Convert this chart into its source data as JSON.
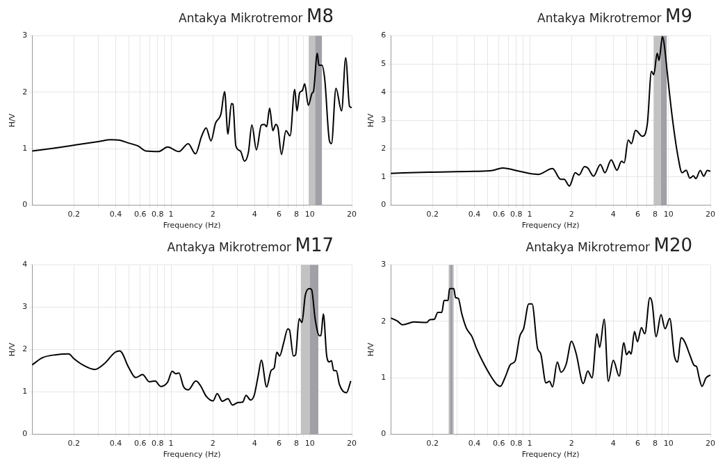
{
  "chart_data": [
    {
      "type": "line",
      "title": "Antakya Mikrotremor M8",
      "xlabel": "Frequency (Hz)",
      "ylabel": "H/V",
      "log": "x",
      "grid": true,
      "xlim": [
        0.1,
        20
      ],
      "ylim": [
        0,
        3
      ],
      "yticks": [
        0,
        1,
        2,
        3
      ],
      "xticks": [
        0.2,
        {
          "value": 0.3,
          "label": null
        },
        0.4,
        {
          "value": 0.5,
          "label": null
        },
        0.6,
        {
          "value": 0.7,
          "label": null
        },
        0.8,
        {
          "value": 0.9,
          "label": null
        },
        1,
        2,
        {
          "value": 3,
          "label": null
        },
        4,
        {
          "value": 5,
          "label": null
        },
        6,
        {
          "value": 7,
          "label": null
        },
        8,
        {
          "value": 9,
          "label": null
        },
        10,
        20
      ],
      "bands": [
        {
          "axis": "x",
          "from": 9.8,
          "to": 10.9,
          "color": "#c2c2c2"
        },
        {
          "axis": "x",
          "from": 10.9,
          "to": 12.2,
          "color": "#a0a0a6"
        }
      ],
      "series": [
        {
          "color": "#000000",
          "x": [
            0.1,
            0.143,
            0.209,
            0.305,
            0.368,
            0.428,
            0.497,
            0.578,
            0.66,
            0.813,
            0.945,
            1.14,
            1.33,
            1.5,
            1.66,
            1.79,
            1.94,
            2.09,
            2.29,
            2.43,
            2.57,
            2.72,
            2.79,
            2.93,
            3.16,
            3.38,
            3.61,
            3.82,
            4.12,
            4.47,
            4.7,
            4.88,
            5.13,
            5.41,
            5.68,
            5.89,
            6.24,
            6.72,
            7.2,
            7.77,
            8.07,
            8.43,
            8.82,
            9.17,
            9.74,
            10.4,
            10.6,
            11.3,
            11.6,
            12.2,
            12.8,
            13.8,
            14.3,
            15.4,
            16.9,
            18.1,
            19.3,
            20
          ],
          "values": [
            0.96,
            1.01,
            1.07,
            1.13,
            1.16,
            1.15,
            1.1,
            1.05,
            0.96,
            0.95,
            1.03,
            0.95,
            1.09,
            0.91,
            1.22,
            1.37,
            1.14,
            1.45,
            1.62,
            2.01,
            1.26,
            1.8,
            1.79,
            1.05,
            0.96,
            0.78,
            0.94,
            1.42,
            0.98,
            1.42,
            1.43,
            1.39,
            1.72,
            1.32,
            1.43,
            1.37,
            0.9,
            1.32,
            1.23,
            2.05,
            1.67,
            1.99,
            2.03,
            2.15,
            1.77,
            1.99,
            2.01,
            2.69,
            2.48,
            2.48,
            2.22,
            1.15,
            1.09,
            2.07,
            1.67,
            2.61,
            1.75,
            1.73
          ]
        }
      ]
    },
    {
      "type": "line",
      "title": "Antakya Mikrotremor M9",
      "xlabel": "Frequency (Hz)",
      "ylabel": "H/V",
      "log": "x",
      "grid": true,
      "xlim": [
        0.1,
        20
      ],
      "ylim": [
        0,
        6
      ],
      "yticks": [
        0,
        1,
        2,
        3,
        4,
        5,
        6
      ],
      "xticks": [
        0.2,
        {
          "value": 0.3,
          "label": null
        },
        0.4,
        {
          "value": 0.5,
          "label": null
        },
        0.6,
        {
          "value": 0.7,
          "label": null
        },
        0.8,
        {
          "value": 0.9,
          "label": null
        },
        1,
        2,
        {
          "value": 3,
          "label": null
        },
        4,
        {
          "value": 5,
          "label": null
        },
        6,
        {
          "value": 7,
          "label": null
        },
        8,
        {
          "value": 9,
          "label": null
        },
        10,
        20
      ],
      "bands": [
        {
          "axis": "x",
          "from": 7.8,
          "to": 8.8,
          "color": "#c2c2c2"
        },
        {
          "axis": "x",
          "from": 8.8,
          "to": 9.7,
          "color": "#a0a0a6"
        }
      ],
      "series": [
        {
          "color": "#000000",
          "x": [
            0.1,
            0.188,
            0.399,
            0.539,
            0.639,
            0.847,
            1.15,
            1.46,
            1.67,
            1.77,
            1.93,
            2.13,
            2.27,
            2.48,
            2.62,
            2.88,
            3.23,
            3.48,
            3.86,
            4.25,
            4.58,
            4.79,
            5.12,
            5.4,
            5.78,
            6.49,
            7.04,
            7.53,
            7.82,
            8.28,
            8.53,
            9.03,
            9.28,
            9.82,
            10.6,
            11.7,
            12.5,
            13.4,
            14.2,
            15.1,
            15.7,
            16.9,
            17.9,
            19,
            20
          ],
          "values": [
            1.13,
            1.17,
            1.2,
            1.23,
            1.32,
            1.2,
            1.09,
            1.3,
            0.92,
            0.92,
            0.68,
            1.15,
            1.07,
            1.37,
            1.32,
            1.03,
            1.44,
            1.15,
            1.61,
            1.24,
            1.56,
            1.5,
            2.31,
            2.18,
            2.65,
            2.44,
            2.91,
            4.74,
            4.62,
            5.38,
            5.13,
            5.97,
            5.73,
            4.62,
            3.16,
            1.71,
            1.15,
            1.24,
            0.96,
            1.04,
            0.94,
            1.23,
            1.03,
            1.23,
            1.2
          ]
        }
      ]
    },
    {
      "type": "line",
      "title": "Antakya Mikrotremor M17",
      "xlabel": "Frequency (Hz)",
      "ylabel": "H/V",
      "log": "x",
      "grid": true,
      "xlim": [
        0.1,
        20
      ],
      "ylim": [
        0,
        4
      ],
      "yticks": [
        0,
        1,
        2,
        3,
        4
      ],
      "xticks": [
        0.2,
        {
          "value": 0.3,
          "label": null
        },
        0.4,
        {
          "value": 0.5,
          "label": null
        },
        0.6,
        {
          "value": 0.7,
          "label": null
        },
        0.8,
        {
          "value": 0.9,
          "label": null
        },
        1,
        2,
        {
          "value": 3,
          "label": null
        },
        4,
        {
          "value": 5,
          "label": null
        },
        6,
        {
          "value": 7,
          "label": null
        },
        8,
        {
          "value": 9,
          "label": null
        },
        10,
        20
      ],
      "bands": [
        {
          "axis": "x",
          "from": 8.6,
          "to": 10.0,
          "color": "#c2c2c2"
        },
        {
          "axis": "x",
          "from": 10.0,
          "to": 11.5,
          "color": "#a0a0a6"
        }
      ],
      "series": [
        {
          "color": "#000000",
          "x": [
            0.1,
            0.119,
            0.149,
            0.183,
            0.201,
            0.234,
            0.282,
            0.329,
            0.397,
            0.428,
            0.497,
            0.557,
            0.624,
            0.699,
            0.768,
            0.844,
            0.945,
            1.02,
            1.08,
            1.14,
            1.23,
            1.33,
            1.51,
            1.63,
            1.79,
            2.01,
            2.15,
            2.34,
            2.57,
            2.77,
            3.04,
            3.28,
            3.47,
            3.74,
            3.97,
            4.25,
            4.47,
            4.88,
            5.26,
            5.53,
            5.78,
            6.05,
            6.47,
            6.93,
            7.12,
            7.6,
            7.89,
            8.37,
            8.76,
            9.27,
            10.0,
            10.3,
            10.9,
            11.7,
            12.0,
            12.5,
            13.2,
            13.8,
            14.3,
            14.8,
            15.5,
            16.3,
            18.3,
            19.7
          ],
          "values": [
            1.64,
            1.81,
            1.88,
            1.9,
            1.78,
            1.63,
            1.53,
            1.66,
            1.94,
            1.97,
            1.57,
            1.34,
            1.41,
            1.24,
            1.26,
            1.13,
            1.23,
            1.49,
            1.43,
            1.45,
            1.13,
            1.05,
            1.26,
            1.15,
            0.9,
            0.79,
            0.96,
            0.78,
            0.84,
            0.69,
            0.75,
            0.76,
            0.92,
            0.81,
            0.92,
            1.4,
            1.75,
            1.12,
            1.51,
            1.57,
            1.94,
            1.85,
            2.16,
            2.49,
            2.47,
            1.85,
            1.88,
            2.73,
            2.64,
            3.29,
            3.44,
            3.41,
            2.73,
            2.33,
            2.33,
            2.84,
            1.86,
            1.71,
            1.74,
            1.51,
            1.5,
            1.18,
            0.98,
            1.26
          ]
        }
      ]
    },
    {
      "type": "line",
      "title": "Antakya Mikrotremor M20",
      "xlabel": "Frequency (Hz)",
      "ylabel": "H/V",
      "log": "x",
      "grid": true,
      "xlim": [
        0.1,
        20
      ],
      "ylim": [
        0,
        3
      ],
      "yticks": [
        0,
        1,
        2,
        3
      ],
      "xticks": [
        0.2,
        {
          "value": 0.3,
          "label": null
        },
        0.4,
        {
          "value": 0.5,
          "label": null
        },
        0.6,
        {
          "value": 0.7,
          "label": null
        },
        0.8,
        {
          "value": 0.9,
          "label": null
        },
        1,
        2,
        {
          "value": 3,
          "label": null
        },
        4,
        {
          "value": 5,
          "label": null
        },
        6,
        {
          "value": 7,
          "label": null
        },
        8,
        {
          "value": 9,
          "label": null
        },
        10,
        20
      ],
      "bands": [
        {
          "axis": "x",
          "from": 0.261,
          "to": 0.284,
          "color": "#c2c2c2"
        },
        {
          "axis": "x",
          "from": 0.267,
          "to": 0.278,
          "color": "#a0a0a6"
        }
      ],
      "series": [
        {
          "color": "#000000",
          "x": [
            0.1,
            0.111,
            0.122,
            0.147,
            0.181,
            0.191,
            0.206,
            0.218,
            0.233,
            0.242,
            0.258,
            0.265,
            0.284,
            0.293,
            0.306,
            0.324,
            0.35,
            0.384,
            0.414,
            0.463,
            0.519,
            0.581,
            0.615,
            0.663,
            0.729,
            0.786,
            0.847,
            0.906,
            0.985,
            1.04,
            1.14,
            1.2,
            1.31,
            1.39,
            1.46,
            1.58,
            1.68,
            1.83,
            2.0,
            2.16,
            2.43,
            2.62,
            2.81,
            3.05,
            3.19,
            3.44,
            3.68,
            4.0,
            4.41,
            4.76,
            4.98,
            5.21,
            5.37,
            5.68,
            5.97,
            6.37,
            6.74,
            7.33,
            7.61,
            8.13,
            8.82,
            9.43,
            10.2,
            11.0,
            11.6,
            12.3,
            13.0,
            14.3,
            15.3,
            15.9,
            16.6,
            17.4,
            18.6,
            20
          ],
          "values": [
            2.06,
            2.01,
            1.94,
            1.99,
            1.98,
            2.03,
            2.04,
            2.16,
            2.16,
            2.37,
            2.37,
            2.58,
            2.58,
            2.42,
            2.41,
            2.14,
            1.88,
            1.73,
            1.52,
            1.27,
            1.05,
            0.88,
            0.85,
            1.0,
            1.24,
            1.3,
            1.73,
            1.88,
            2.31,
            2.31,
            1.52,
            1.43,
            0.91,
            0.94,
            0.84,
            1.28,
            1.1,
            1.24,
            1.65,
            1.43,
            0.9,
            1.12,
            1.0,
            1.78,
            1.54,
            2.04,
            0.94,
            1.31,
            1.03,
            1.62,
            1.41,
            1.47,
            1.42,
            1.82,
            1.64,
            1.89,
            1.78,
            2.42,
            2.33,
            1.73,
            2.12,
            1.87,
            2.05,
            1.39,
            1.28,
            1.71,
            1.65,
            1.39,
            1.22,
            1.2,
            1.0,
            0.85,
            1.0,
            1.05
          ]
        }
      ]
    }
  ]
}
